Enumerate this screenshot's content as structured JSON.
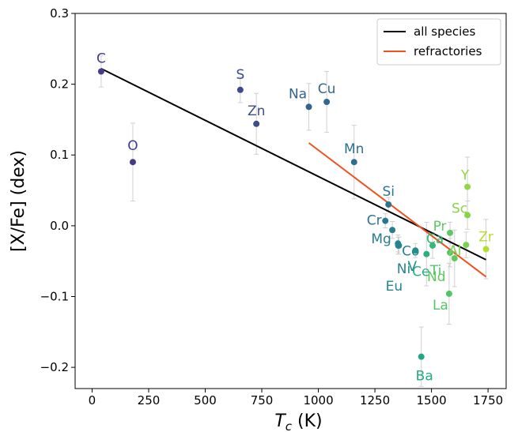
{
  "chart_data": {
    "type": "scatter",
    "title": "",
    "xlabel_main": "T",
    "xlabel_sub": "c",
    "xlabel_unit": " (K)",
    "ylabel": "[X/Fe] (dex)",
    "xlim": [
      -75,
      1830
    ],
    "ylim": [
      -0.23,
      0.3
    ],
    "xticks": [
      0,
      250,
      500,
      750,
      1000,
      1250,
      1500,
      1750
    ],
    "yticks": [
      -0.2,
      -0.1,
      0.0,
      0.1,
      0.2,
      0.3
    ],
    "ytick_labels": [
      "−0.2",
      "−0.1",
      "0.0",
      "0.1",
      "0.2",
      "0.3"
    ],
    "grid": false,
    "legend_position": "top-right",
    "legend": [
      {
        "label": "all species",
        "color": "#000000"
      },
      {
        "label": "refractories",
        "color": "#f0511c"
      }
    ],
    "fit_lines": [
      {
        "name": "all species",
        "color": "#000000",
        "x": [
          40,
          1741
        ],
        "y": [
          0.222,
          -0.048
        ]
      },
      {
        "name": "refractories",
        "color": "#f0511c",
        "x": [
          958,
          1741
        ],
        "y": [
          0.117,
          -0.072
        ]
      }
    ],
    "points": [
      {
        "label": "C",
        "x": 40,
        "y": 0.218,
        "err": 0.022,
        "color": "#433d86"
      },
      {
        "label": "O",
        "x": 180,
        "y": 0.09,
        "err": 0.055,
        "color": "#423a85"
      },
      {
        "label": "S",
        "x": 655,
        "y": 0.192,
        "err": 0.018,
        "color": "#3e4a89"
      },
      {
        "label": "Zn",
        "x": 726,
        "y": 0.144,
        "err": 0.043,
        "color": "#3d4d8a"
      },
      {
        "label": "Na",
        "x": 958,
        "y": 0.168,
        "err": 0.033,
        "color": "#33628d"
      },
      {
        "label": "Cu",
        "x": 1037,
        "y": 0.175,
        "err": 0.043,
        "color": "#31688e"
      },
      {
        "label": "Mn",
        "x": 1158,
        "y": 0.09,
        "err": 0.052,
        "color": "#2e6f8e"
      },
      {
        "label": "Si",
        "x": 1310,
        "y": 0.03,
        "err": 0.01,
        "color": "#2a788e"
      },
      {
        "label": "Cr",
        "x": 1296,
        "y": 0.007,
        "err": 0.01,
        "color": "#2a778e"
      },
      {
        "label": "Mg",
        "x": 1327,
        "y": -0.006,
        "err": 0.012,
        "color": "#277f8e"
      },
      {
        "label": "Co",
        "x": 1352,
        "y": -0.025,
        "err": 0.012,
        "color": "#25848e"
      },
      {
        "label": "Ni",
        "x": 1353,
        "y": -0.028,
        "err": 0.012,
        "color": "#25858e"
      },
      {
        "label": "Eu",
        "x": 1356,
        "y": -0.028,
        "err": 0.012,
        "color": "#25858e"
      },
      {
        "label": "V",
        "x": 1429,
        "y": -0.035,
        "err": 0.01,
        "color": "#21918c"
      },
      {
        "label": "Ba",
        "x": 1455,
        "y": -0.185,
        "err": 0.042,
        "color": "#22a884"
      },
      {
        "label": "Ce",
        "x": 1478,
        "y": -0.04,
        "err": 0.045,
        "color": "#2ab07f"
      },
      {
        "label": "Ca",
        "x": 1505,
        "y": -0.028,
        "err": 0.018,
        "color": "#35b779"
      },
      {
        "label": "La",
        "x": 1578,
        "y": -0.096,
        "err": 0.043,
        "color": "#52c569"
      },
      {
        "label": "Ti",
        "x": 1582,
        "y": -0.038,
        "err": 0.02,
        "color": "#52c569"
      },
      {
        "label": "Pr",
        "x": 1582,
        "y": -0.01,
        "err": 0.015,
        "color": "#5ec962"
      },
      {
        "label": "Nd",
        "x": 1602,
        "y": -0.046,
        "err": 0.04,
        "color": "#60ca60"
      },
      {
        "label": "Al",
        "x": 1653,
        "y": -0.027,
        "err": 0.018,
        "color": "#7ad151"
      },
      {
        "label": "Sc",
        "x": 1659,
        "y": 0.015,
        "err": 0.02,
        "color": "#86d549"
      },
      {
        "label": "Y",
        "x": 1659,
        "y": 0.055,
        "err": 0.042,
        "color": "#90d743"
      },
      {
        "label": "Zr",
        "x": 1741,
        "y": -0.033,
        "err": 0.042,
        "color": "#b5de2b"
      }
    ]
  }
}
